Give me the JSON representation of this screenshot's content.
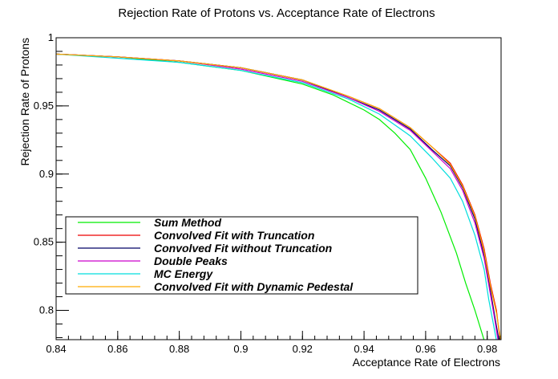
{
  "chart_data": {
    "type": "line",
    "title": "Rejection Rate of Protons vs. Acceptance Rate of Electrons",
    "xlabel": "Acceptance Rate of Electrons",
    "ylabel": "Rejection Rate of Protons",
    "xlim": [
      0.84,
      0.9845
    ],
    "ylim": [
      0.7785,
      1.0
    ],
    "grid": false,
    "legend_position": "lower-left",
    "x_ticks": [
      {
        "value": 0.84,
        "label": "0.84"
      },
      {
        "value": 0.86,
        "label": "0.86"
      },
      {
        "value": 0.88,
        "label": "0.88"
      },
      {
        "value": 0.9,
        "label": "0.9"
      },
      {
        "value": 0.92,
        "label": "0.92"
      },
      {
        "value": 0.94,
        "label": "0.94"
      },
      {
        "value": 0.96,
        "label": "0.96"
      },
      {
        "value": 0.98,
        "label": "0.98"
      }
    ],
    "y_ticks": [
      {
        "value": 0.8,
        "label": "0.8"
      },
      {
        "value": 0.85,
        "label": "0.85"
      },
      {
        "value": 0.9,
        "label": "0.9"
      },
      {
        "value": 0.95,
        "label": "0.95"
      },
      {
        "value": 1.0,
        "label": "1"
      }
    ],
    "series": [
      {
        "name": "Sum Method",
        "color": "#00ee00",
        "points": [
          [
            0.84,
            0.988
          ],
          [
            0.86,
            0.986
          ],
          [
            0.88,
            0.982
          ],
          [
            0.9,
            0.976
          ],
          [
            0.92,
            0.966
          ],
          [
            0.93,
            0.958
          ],
          [
            0.94,
            0.947
          ],
          [
            0.945,
            0.94
          ],
          [
            0.95,
            0.93
          ],
          [
            0.955,
            0.918
          ],
          [
            0.96,
            0.897
          ],
          [
            0.965,
            0.872
          ],
          [
            0.97,
            0.842
          ],
          [
            0.973,
            0.82
          ],
          [
            0.976,
            0.8
          ],
          [
            0.979,
            0.778
          ]
        ]
      },
      {
        "name": "Convolved Fit with Truncation",
        "color": "#ee0000",
        "points": [
          [
            0.84,
            0.988
          ],
          [
            0.86,
            0.986
          ],
          [
            0.88,
            0.983
          ],
          [
            0.9,
            0.978
          ],
          [
            0.92,
            0.969
          ],
          [
            0.935,
            0.957
          ],
          [
            0.945,
            0.948
          ],
          [
            0.955,
            0.934
          ],
          [
            0.962,
            0.92
          ],
          [
            0.968,
            0.908
          ],
          [
            0.972,
            0.892
          ],
          [
            0.976,
            0.87
          ],
          [
            0.979,
            0.845
          ],
          [
            0.981,
            0.82
          ],
          [
            0.983,
            0.8
          ],
          [
            0.9842,
            0.778
          ]
        ]
      },
      {
        "name": "Convolved Fit without Truncation",
        "color": "#000066",
        "points": [
          [
            0.84,
            0.988
          ],
          [
            0.86,
            0.986
          ],
          [
            0.88,
            0.983
          ],
          [
            0.9,
            0.978
          ],
          [
            0.92,
            0.969
          ],
          [
            0.935,
            0.956
          ],
          [
            0.945,
            0.947
          ],
          [
            0.955,
            0.933
          ],
          [
            0.962,
            0.918
          ],
          [
            0.968,
            0.906
          ],
          [
            0.972,
            0.89
          ],
          [
            0.976,
            0.867
          ],
          [
            0.979,
            0.84
          ],
          [
            0.981,
            0.815
          ],
          [
            0.9825,
            0.795
          ],
          [
            0.9838,
            0.778
          ]
        ]
      },
      {
        "name": "Double Peaks",
        "color": "#cc00cc",
        "points": [
          [
            0.84,
            0.988
          ],
          [
            0.86,
            0.986
          ],
          [
            0.88,
            0.983
          ],
          [
            0.9,
            0.977
          ],
          [
            0.92,
            0.968
          ],
          [
            0.935,
            0.956
          ],
          [
            0.945,
            0.946
          ],
          [
            0.955,
            0.932
          ],
          [
            0.962,
            0.917
          ],
          [
            0.968,
            0.904
          ],
          [
            0.972,
            0.888
          ],
          [
            0.976,
            0.864
          ],
          [
            0.979,
            0.838
          ],
          [
            0.981,
            0.812
          ],
          [
            0.9823,
            0.795
          ],
          [
            0.9835,
            0.778
          ]
        ]
      },
      {
        "name": "MC Energy",
        "color": "#00dddd",
        "points": [
          [
            0.84,
            0.988
          ],
          [
            0.86,
            0.985
          ],
          [
            0.88,
            0.982
          ],
          [
            0.9,
            0.976
          ],
          [
            0.92,
            0.967
          ],
          [
            0.935,
            0.955
          ],
          [
            0.945,
            0.944
          ],
          [
            0.955,
            0.928
          ],
          [
            0.962,
            0.912
          ],
          [
            0.968,
            0.897
          ],
          [
            0.972,
            0.88
          ],
          [
            0.976,
            0.855
          ],
          [
            0.979,
            0.83
          ],
          [
            0.9805,
            0.808
          ],
          [
            0.982,
            0.79
          ],
          [
            0.983,
            0.778
          ]
        ]
      },
      {
        "name": "Convolved Fit with Dynamic Pedestal",
        "color": "#ffaa00",
        "points": [
          [
            0.84,
            0.988
          ],
          [
            0.86,
            0.986
          ],
          [
            0.88,
            0.983
          ],
          [
            0.9,
            0.978
          ],
          [
            0.92,
            0.969
          ],
          [
            0.935,
            0.957
          ],
          [
            0.945,
            0.948
          ],
          [
            0.955,
            0.934
          ],
          [
            0.962,
            0.92
          ],
          [
            0.968,
            0.907
          ],
          [
            0.972,
            0.891
          ],
          [
            0.976,
            0.869
          ],
          [
            0.979,
            0.843
          ],
          [
            0.981,
            0.818
          ],
          [
            0.983,
            0.798
          ],
          [
            0.9844,
            0.778
          ]
        ]
      }
    ]
  }
}
